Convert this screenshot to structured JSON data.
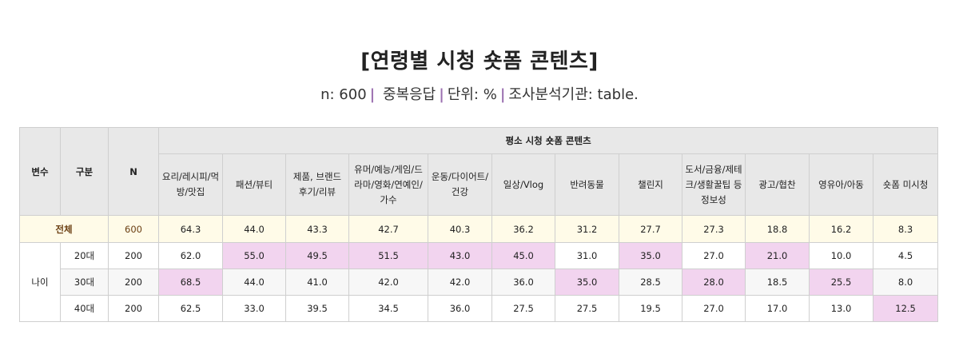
{
  "title": "[연령별 시청 숏폼 콘텐츠]",
  "subtitle": {
    "n": "n: 600",
    "multi": "중복응답",
    "unit": "단위: %",
    "agency": "조사분석기관: table."
  },
  "table": {
    "head": {
      "var": "변수",
      "group": "구분",
      "n": "N",
      "group_title": "평소 시청 숏폼 콘텐츠"
    },
    "columns": [
      "요리/레시피/먹방/맛집",
      "패션/뷰티",
      "제품, 브랜드 후기/리뷰",
      "유머/예능/게임/드라마/영화/연예인/가수",
      "운동/다이어트/건강",
      "일상/Vlog",
      "반려동물",
      "챌린지",
      "도서/금융/제테크/생활꿀팁 등 정보성",
      "광고/협찬",
      "영유아/아동",
      "숏폼 미시청"
    ],
    "total": {
      "label": "전체",
      "n": "600",
      "values": [
        "64.3",
        "44.0",
        "43.3",
        "42.7",
        "40.3",
        "36.2",
        "31.2",
        "27.7",
        "27.3",
        "18.8",
        "16.2",
        "8.3"
      ]
    },
    "age": {
      "label": "나이",
      "rows": [
        {
          "group": "20대",
          "n": "200",
          "values": [
            "62.0",
            "55.0",
            "49.5",
            "51.5",
            "43.0",
            "45.0",
            "31.0",
            "35.0",
            "27.0",
            "21.0",
            "10.0",
            "4.5"
          ]
        },
        {
          "group": "30대",
          "n": "200",
          "values": [
            "68.5",
            "44.0",
            "41.0",
            "42.0",
            "42.0",
            "36.0",
            "35.0",
            "28.5",
            "28.0",
            "18.5",
            "25.5",
            "8.0"
          ]
        },
        {
          "group": "40대",
          "n": "200",
          "values": [
            "62.5",
            "33.0",
            "39.5",
            "34.5",
            "36.0",
            "27.5",
            "27.5",
            "19.5",
            "27.0",
            "17.0",
            "13.0",
            "12.5"
          ]
        }
      ]
    },
    "highlight_color": "#f2d4ef"
  }
}
